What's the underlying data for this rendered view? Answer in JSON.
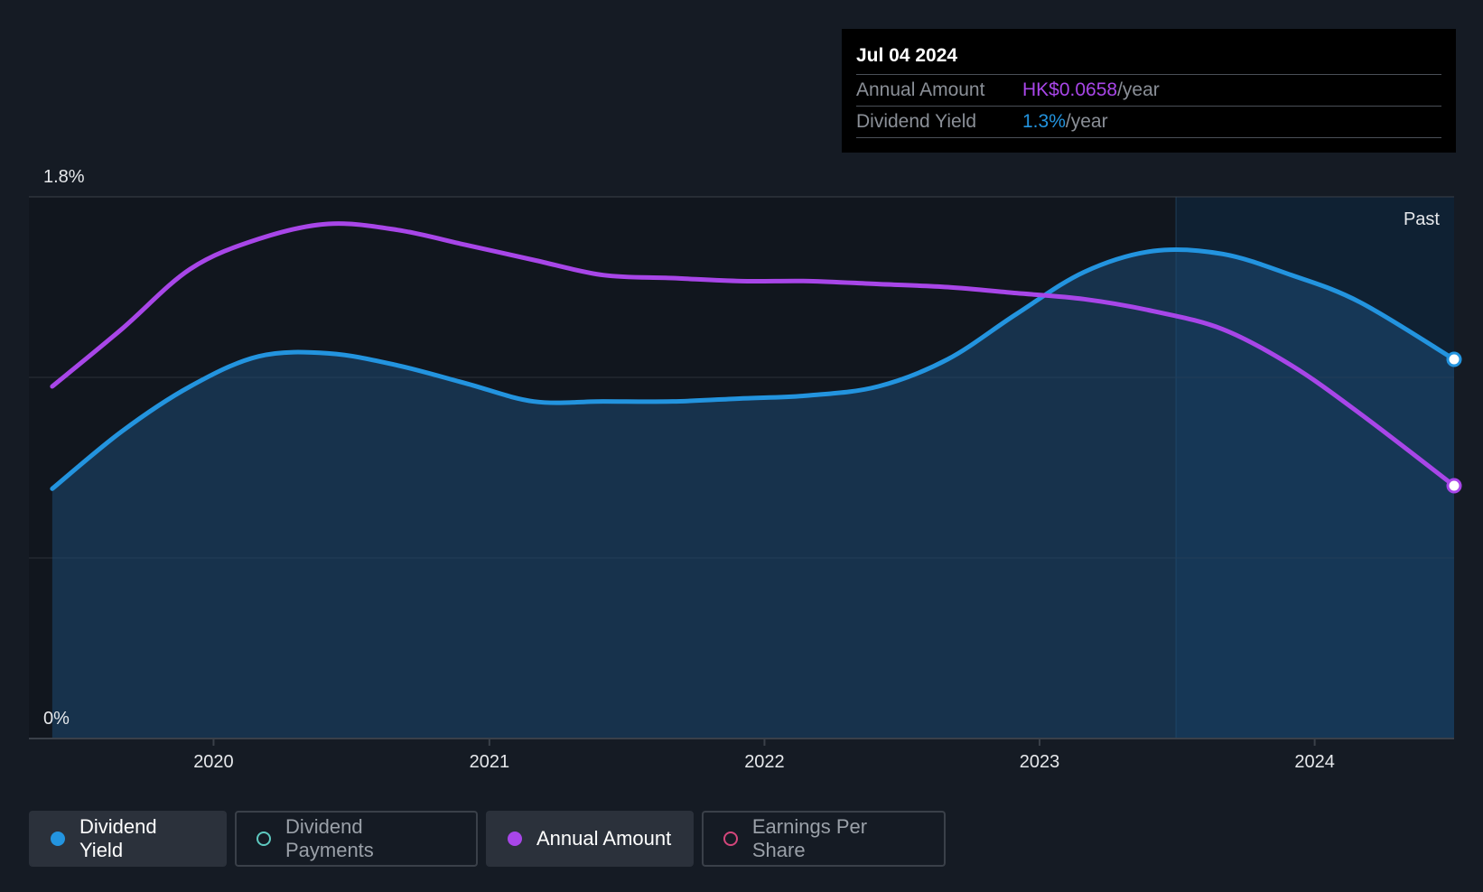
{
  "colors": {
    "background": "#151b24",
    "dividend_yield": "#2394df",
    "annual_amount": "#a846e8",
    "dividend_payments": "#5ec9c0",
    "earnings_per_share": "#d4467b",
    "past_region": "#0f2c45"
  },
  "tooltip": {
    "date": "Jul 04 2024",
    "rows": [
      {
        "label": "Annual Amount",
        "value": "HK$0.0658",
        "unit": "/year"
      },
      {
        "label": "Dividend Yield",
        "value": "1.3%",
        "unit": "/year"
      }
    ]
  },
  "legend": [
    {
      "label": "Dividend Yield",
      "active": true,
      "icon": "filled-dot"
    },
    {
      "label": "Dividend Payments",
      "active": false,
      "icon": "hollow-dot"
    },
    {
      "label": "Annual Amount",
      "active": true,
      "icon": "filled-dot"
    },
    {
      "label": "Earnings Per Share",
      "active": false,
      "icon": "hollow-dot"
    }
  ],
  "chart_data": {
    "type": "area",
    "y_tick_labels": [
      "1.8%",
      "0%"
    ],
    "ylim": [
      0,
      1.8
    ],
    "x_tick_labels": [
      "2020",
      "2021",
      "2022",
      "2023",
      "2024"
    ],
    "xlim": [
      "2019-05-01",
      "2024-07-04"
    ],
    "past_label": "Past",
    "past_start": "2023-07-01",
    "grid": true,
    "series": [
      {
        "name": "Dividend Yield",
        "style": "area",
        "points": [
          [
            "2019-06-01",
            0.83
          ],
          [
            "2019-09-01",
            1.02
          ],
          [
            "2019-12-01",
            1.17
          ],
          [
            "2020-03-01",
            1.27
          ],
          [
            "2020-06-01",
            1.28
          ],
          [
            "2020-09-01",
            1.24
          ],
          [
            "2020-12-01",
            1.18
          ],
          [
            "2021-03-01",
            1.12
          ],
          [
            "2021-06-01",
            1.12
          ],
          [
            "2021-09-01",
            1.12
          ],
          [
            "2021-12-01",
            1.13
          ],
          [
            "2022-03-01",
            1.14
          ],
          [
            "2022-06-01",
            1.17
          ],
          [
            "2022-09-01",
            1.26
          ],
          [
            "2022-12-01",
            1.41
          ],
          [
            "2023-03-01",
            1.55
          ],
          [
            "2023-06-01",
            1.62
          ],
          [
            "2023-09-01",
            1.61
          ],
          [
            "2023-12-01",
            1.54
          ],
          [
            "2024-03-01",
            1.45
          ],
          [
            "2024-07-04",
            1.26
          ]
        ]
      },
      {
        "name": "Annual Amount",
        "style": "line",
        "points": [
          [
            "2019-06-01",
            1.17
          ],
          [
            "2019-09-01",
            1.36
          ],
          [
            "2019-12-01",
            1.56
          ],
          [
            "2020-03-01",
            1.66
          ],
          [
            "2020-06-01",
            1.71
          ],
          [
            "2020-09-01",
            1.69
          ],
          [
            "2020-12-01",
            1.64
          ],
          [
            "2021-03-01",
            1.59
          ],
          [
            "2021-06-01",
            1.54
          ],
          [
            "2021-09-01",
            1.53
          ],
          [
            "2021-12-01",
            1.52
          ],
          [
            "2022-03-01",
            1.52
          ],
          [
            "2022-06-01",
            1.51
          ],
          [
            "2022-09-01",
            1.5
          ],
          [
            "2022-12-01",
            1.48
          ],
          [
            "2023-03-01",
            1.46
          ],
          [
            "2023-06-01",
            1.42
          ],
          [
            "2023-09-01",
            1.36
          ],
          [
            "2023-12-01",
            1.24
          ],
          [
            "2024-03-01",
            1.08
          ],
          [
            "2024-07-04",
            0.84
          ]
        ]
      }
    ]
  }
}
